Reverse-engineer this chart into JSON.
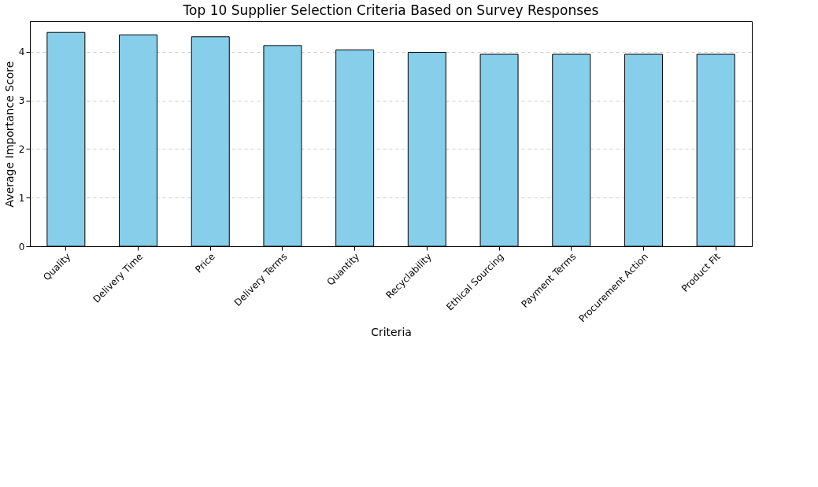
{
  "chart_data": {
    "type": "bar",
    "title": "Top 10 Supplier Selection Criteria Based on Survey Responses",
    "xlabel": "Criteria",
    "ylabel": "Average Importance Score",
    "categories": [
      "Quality",
      "Delivery Time",
      "Price",
      "Delivery Terms",
      "Quantity",
      "Recyclability",
      "Ethical Sourcing",
      "Payment Terms",
      "Procurement Action",
      "Product Fit"
    ],
    "values": [
      4.4,
      4.35,
      4.31,
      4.13,
      4.04,
      3.99,
      3.95,
      3.95,
      3.95,
      3.95
    ],
    "color": "#87ceeb",
    "ylim": [
      0,
      4.63
    ],
    "yticks": [
      0,
      1,
      2,
      3,
      4
    ],
    "grid": "y"
  }
}
